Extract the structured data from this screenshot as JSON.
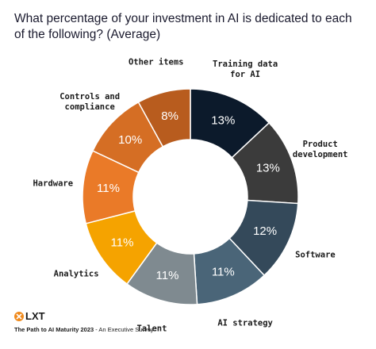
{
  "chart_data": {
    "type": "donut",
    "title": "What percentage of your investment in AI is dedicated to each of the following? (Average)",
    "categories": [
      "Training data for AI",
      "Product development",
      "Software",
      "AI strategy",
      "Talent",
      "Analytics",
      "Hardware",
      "Controls and compliance",
      "Other items"
    ],
    "values": [
      13,
      13,
      12,
      11,
      11,
      11,
      11,
      10,
      8
    ],
    "value_labels": [
      "13%",
      "13%",
      "12%",
      "11%",
      "11%",
      "11%",
      "11%",
      "10%",
      "8%"
    ],
    "colors": [
      "#0c1a2b",
      "#3b3b3b",
      "#34495a",
      "#4a6578",
      "#7f8a90",
      "#f5a300",
      "#ea7a28",
      "#d56e24",
      "#b85c1e"
    ]
  },
  "footer": {
    "brand": "LXT",
    "source": "The Path to AI Maturity 2023",
    "subtitle": "- An Executive Survey"
  }
}
